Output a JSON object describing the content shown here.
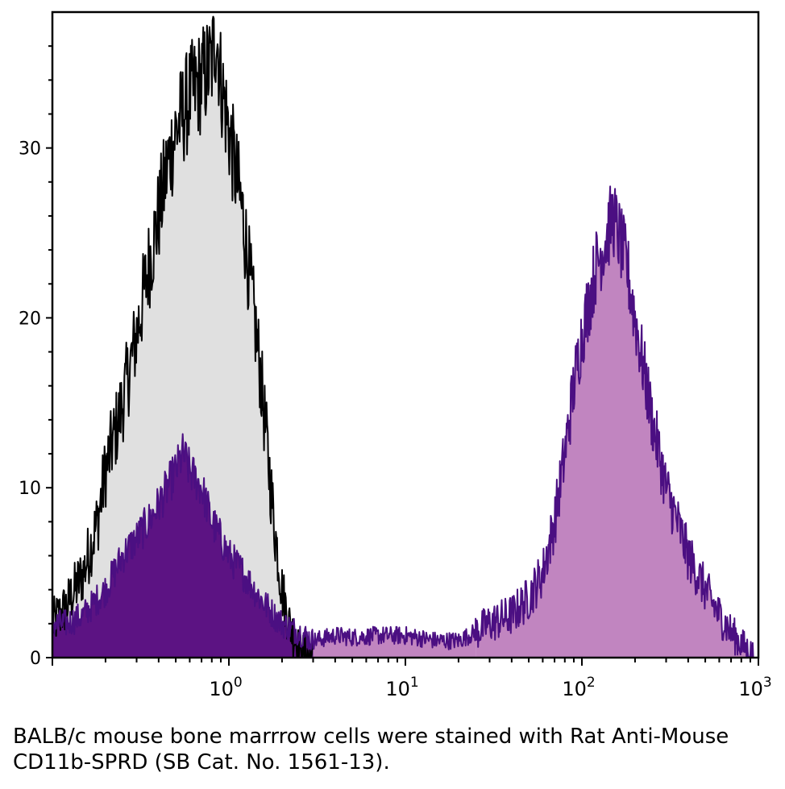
{
  "caption": "BALB/c mouse bone marrrow cells were stained with Rat Anti-Mouse CD11b-SPRD (SB Cat. No. 1561-13).",
  "colors": {
    "isotype_fill": "#e0e0e0",
    "isotype_line": "#000000",
    "stained_fill_low": "#5c1383",
    "stained_fill_high": "#c185c0",
    "stained_line": "#4b0f82"
  },
  "chart_data": {
    "type": "area",
    "title": "",
    "xlabel": "",
    "ylabel": "",
    "xscale": "log",
    "xlim": [
      0.1,
      1000
    ],
    "ylim": [
      0,
      38
    ],
    "grid": false,
    "legend": "none",
    "x_ticks": [
      {
        "value": 1,
        "base": "10",
        "exp": "0"
      },
      {
        "value": 10,
        "base": "10",
        "exp": "1"
      },
      {
        "value": 100,
        "base": "10",
        "exp": "2"
      },
      {
        "value": 1000,
        "base": "10",
        "exp": "3"
      }
    ],
    "y_ticks": [
      {
        "value": 0,
        "label": "0"
      },
      {
        "value": 10,
        "label": "10"
      },
      {
        "value": 20,
        "label": "20"
      },
      {
        "value": 30,
        "label": "30"
      }
    ],
    "series": [
      {
        "key": "isotype",
        "x": [
          0.1,
          0.12,
          0.15,
          0.18,
          0.2,
          0.25,
          0.3,
          0.35,
          0.4,
          0.45,
          0.5,
          0.6,
          0.7,
          0.8,
          0.85,
          0.9,
          1.0,
          1.2,
          1.5,
          1.8,
          2.0,
          2.2,
          2.5,
          3.0
        ],
        "values": [
          2,
          3,
          5,
          8,
          11,
          15,
          19,
          23,
          26,
          29,
          31,
          33,
          34,
          35,
          37,
          34,
          31,
          26,
          17,
          8,
          4,
          2,
          0.5,
          0
        ]
      },
      {
        "key": "stained_low",
        "x": [
          0.1,
          0.12,
          0.15,
          0.2,
          0.25,
          0.3,
          0.35,
          0.4,
          0.5,
          0.55,
          0.6,
          0.7,
          0.8,
          0.9,
          1.0,
          1.2,
          1.5,
          1.8,
          2.0,
          2.5,
          3.0
        ],
        "values": [
          2,
          2,
          2.5,
          4,
          6,
          7,
          8,
          9,
          11,
          12,
          11,
          10,
          8,
          7,
          6,
          5,
          3.5,
          2.5,
          2,
          1.5,
          1
        ]
      },
      {
        "key": "stained_plateau",
        "x": [
          3.0,
          4.0,
          5.0,
          7.0,
          10,
          15,
          20,
          25
        ],
        "values": [
          1,
          1.3,
          1.2,
          1.3,
          1.3,
          1.0,
          1.0,
          1.5
        ]
      },
      {
        "key": "stained_high",
        "x": [
          25,
          30,
          40,
          50,
          60,
          70,
          80,
          90,
          100,
          110,
          120,
          130,
          140,
          150,
          160,
          180,
          200,
          250,
          300,
          400,
          500,
          600,
          700,
          800,
          900,
          950
        ],
        "values": [
          1.5,
          2,
          2.5,
          3.5,
          5,
          8,
          12,
          16,
          19,
          21,
          23,
          24,
          25,
          26,
          25,
          23,
          20,
          14,
          10,
          6,
          4,
          2.5,
          1.5,
          0.8,
          0.3,
          0.1
        ]
      }
    ]
  }
}
